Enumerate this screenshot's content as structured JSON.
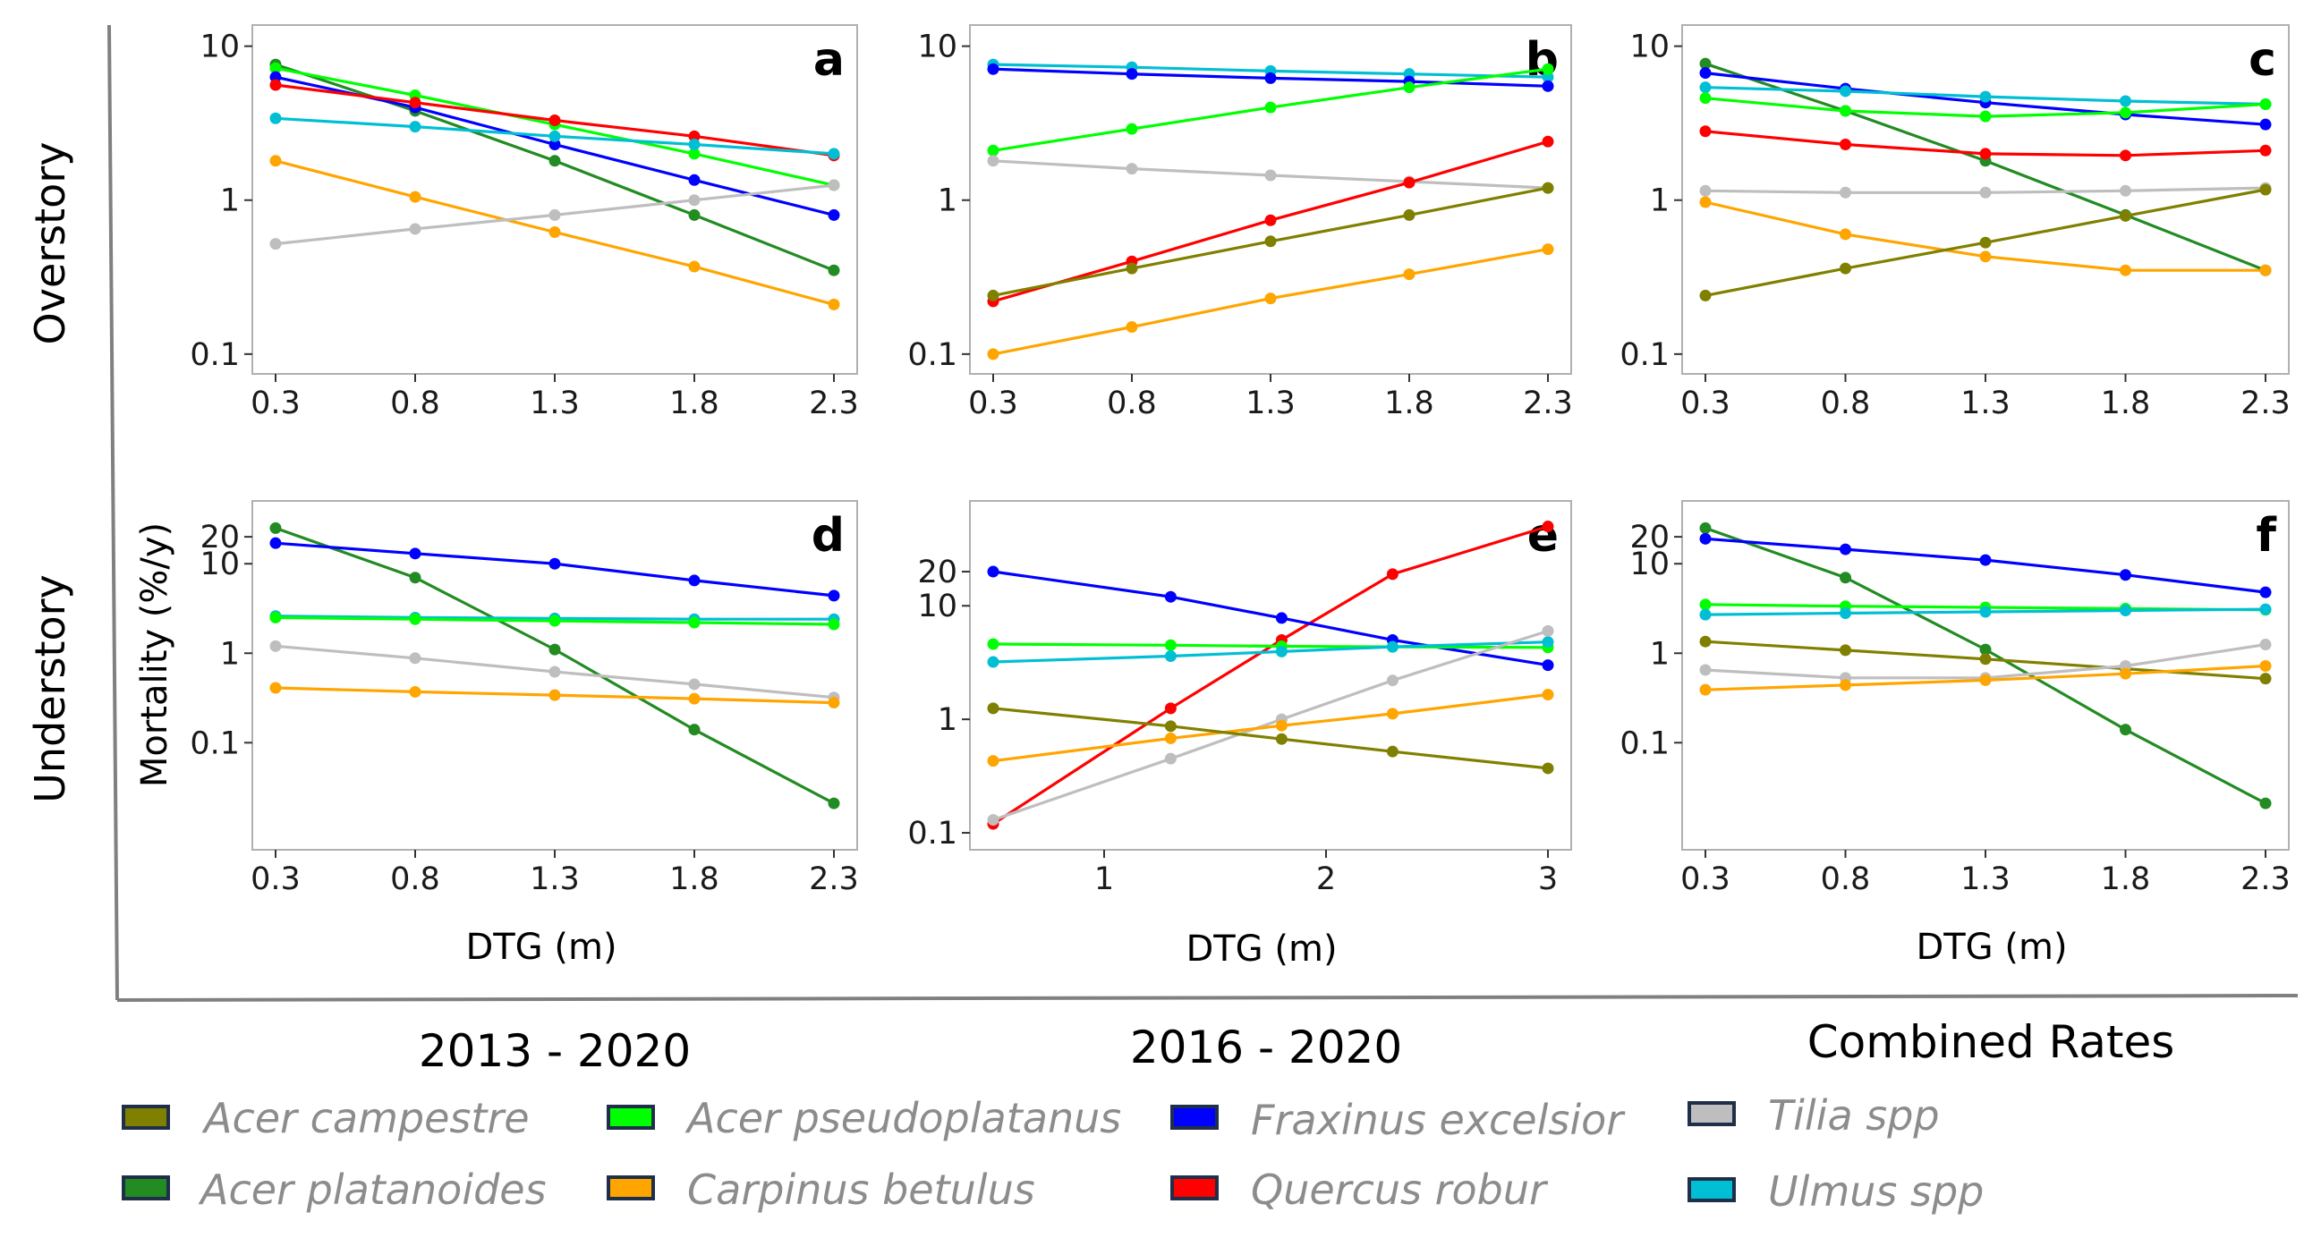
{
  "row_labels": [
    "Overstory",
    "Understory"
  ],
  "column_labels": [
    "2013 - 2020",
    "2016 - 2020",
    "Combined Rates"
  ],
  "y_axis_title": "Mortality (%/y)",
  "x_axis_title": "DTG (m)",
  "colors": {
    "Acer campestre": "#808000",
    "Acer platanoides": "#228B22",
    "Acer pseudoplatanus": "#00FF00",
    "Carpinus betulus": "#FFA500",
    "Fraxinus excelsior": "#0000FF",
    "Quercus robur": "#FF0000",
    "Tilia spp": "#BEBEBE",
    "Ulmus spp": "#00BFD4"
  },
  "legend": [
    "Acer campestre",
    "Acer platanoides",
    "Acer pseudoplatanus",
    "Carpinus betulus",
    "Fraxinus excelsior",
    "Quercus robur",
    "Tilia spp",
    "Ulmus spp"
  ],
  "chart_data": [
    {
      "type": "line",
      "panel": "a",
      "y_scale": "log",
      "x": [
        0.3,
        0.8,
        1.3,
        1.8,
        2.3
      ],
      "xticks": [
        "0.3",
        "0.8",
        "1.3",
        "1.8",
        "2.3"
      ],
      "yticks": [
        "0.1",
        "1",
        "10"
      ],
      "ytick_values": [
        0.1,
        1,
        10
      ],
      "xlim": [
        0.3,
        2.3
      ],
      "ylim": [
        0.085,
        12
      ],
      "series": [
        {
          "name": "Acer platanoides",
          "values": [
            7.6,
            3.8,
            1.8,
            0.8,
            0.35
          ]
        },
        {
          "name": "Acer pseudoplatanus",
          "values": [
            7.2,
            4.8,
            3.1,
            2.0,
            1.25
          ]
        },
        {
          "name": "Fraxinus excelsior",
          "values": [
            6.3,
            4.0,
            2.3,
            1.35,
            0.8
          ]
        },
        {
          "name": "Quercus robur",
          "values": [
            5.6,
            4.3,
            3.3,
            2.6,
            1.95
          ]
        },
        {
          "name": "Ulmus spp",
          "values": [
            3.4,
            3.0,
            2.6,
            2.3,
            2.0
          ]
        },
        {
          "name": "Carpinus betulus",
          "values": [
            1.8,
            1.05,
            0.62,
            0.37,
            0.21
          ]
        },
        {
          "name": "Tilia spp",
          "values": [
            0.52,
            0.65,
            0.8,
            1.0,
            1.25
          ]
        }
      ]
    },
    {
      "type": "line",
      "panel": "b",
      "y_scale": "log",
      "x": [
        0.3,
        0.8,
        1.3,
        1.8,
        2.3
      ],
      "xticks": [
        "0.3",
        "0.8",
        "1.3",
        "1.8",
        "2.3"
      ],
      "yticks": [
        "0.1",
        "1",
        "10"
      ],
      "ytick_values": [
        0.1,
        1,
        10
      ],
      "xlim": [
        0.3,
        2.3
      ],
      "ylim": [
        0.085,
        12
      ],
      "series": [
        {
          "name": "Ulmus spp",
          "values": [
            7.6,
            7.3,
            6.9,
            6.6,
            6.3
          ]
        },
        {
          "name": "Fraxinus excelsior",
          "values": [
            7.1,
            6.6,
            6.2,
            5.9,
            5.5
          ]
        },
        {
          "name": "Acer pseudoplatanus",
          "values": [
            2.1,
            2.9,
            4.0,
            5.4,
            7.1
          ]
        },
        {
          "name": "Tilia spp",
          "values": [
            1.8,
            1.6,
            1.45,
            1.32,
            1.2
          ]
        },
        {
          "name": "Quercus robur",
          "values": [
            0.22,
            0.4,
            0.74,
            1.3,
            2.4
          ]
        },
        {
          "name": "Acer campestre",
          "values": [
            0.24,
            0.36,
            0.54,
            0.8,
            1.2
          ]
        },
        {
          "name": "Carpinus betulus",
          "values": [
            0.1,
            0.15,
            0.23,
            0.33,
            0.48
          ]
        }
      ]
    },
    {
      "type": "line",
      "panel": "c",
      "y_scale": "log",
      "x": [
        0.3,
        0.8,
        1.3,
        1.8,
        2.3
      ],
      "xticks": [
        "0.3",
        "0.8",
        "1.3",
        "1.8",
        "2.3"
      ],
      "yticks": [
        "0.1",
        "1",
        "10"
      ],
      "ytick_values": [
        0.1,
        1,
        10
      ],
      "xlim": [
        0.3,
        2.3
      ],
      "ylim": [
        0.085,
        12
      ],
      "series": [
        {
          "name": "Acer platanoides",
          "values": [
            7.7,
            3.8,
            1.8,
            0.8,
            0.35
          ]
        },
        {
          "name": "Fraxinus excelsior",
          "values": [
            6.7,
            5.3,
            4.3,
            3.6,
            3.1
          ]
        },
        {
          "name": "Ulmus spp",
          "values": [
            5.4,
            5.1,
            4.7,
            4.4,
            4.2
          ]
        },
        {
          "name": "Acer pseudoplatanus",
          "values": [
            4.6,
            3.8,
            3.5,
            3.7,
            4.2
          ]
        },
        {
          "name": "Quercus robur",
          "values": [
            2.8,
            2.3,
            2.0,
            1.95,
            2.1
          ]
        },
        {
          "name": "Tilia spp",
          "values": [
            1.15,
            1.12,
            1.12,
            1.15,
            1.2
          ]
        },
        {
          "name": "Carpinus betulus",
          "values": [
            0.97,
            0.6,
            0.43,
            0.35,
            0.35
          ]
        },
        {
          "name": "Acer campestre",
          "values": [
            0.24,
            0.36,
            0.53,
            0.79,
            1.17
          ]
        }
      ]
    },
    {
      "type": "line",
      "panel": "d",
      "y_scale": "log",
      "x": [
        0.3,
        0.8,
        1.3,
        1.8,
        2.3
      ],
      "xticks": [
        "0.3",
        "0.8",
        "1.3",
        "1.8",
        "2.3"
      ],
      "yticks": [
        "0.1",
        "1",
        "10",
        "20"
      ],
      "ytick_values": [
        0.1,
        1,
        10,
        20
      ],
      "xlim": [
        0.3,
        2.3
      ],
      "ylim": [
        0.008,
        40
      ],
      "series": [
        {
          "name": "Acer platanoides",
          "values": [
            25,
            7,
            1.1,
            0.14,
            0.021
          ]
        },
        {
          "name": "Fraxinus excelsior",
          "values": [
            17,
            13,
            10,
            6.5,
            4.4
          ]
        },
        {
          "name": "Ulmus spp",
          "values": [
            2.6,
            2.5,
            2.45,
            2.4,
            2.4
          ]
        },
        {
          "name": "Acer pseudoplatanus",
          "values": [
            2.5,
            2.4,
            2.3,
            2.2,
            2.1
          ]
        },
        {
          "name": "Tilia spp",
          "values": [
            1.2,
            0.88,
            0.62,
            0.45,
            0.32
          ]
        },
        {
          "name": "Carpinus betulus",
          "values": [
            0.41,
            0.37,
            0.34,
            0.31,
            0.28
          ]
        }
      ]
    },
    {
      "type": "line",
      "panel": "e",
      "y_scale": "log",
      "x": [
        0.5,
        1.3,
        1.8,
        2.3,
        3.0
      ],
      "xticks": [
        "1",
        "2",
        "3"
      ],
      "xtick_values": [
        1,
        2,
        3
      ],
      "yticks": [
        "0.1",
        "1",
        "10",
        "20"
      ],
      "ytick_values": [
        0.1,
        1,
        10,
        20
      ],
      "xlim": [
        0.5,
        3.0
      ],
      "ylim": [
        0.085,
        70
      ],
      "series": [
        {
          "name": "Quercus robur",
          "values": [
            0.12,
            1.25,
            5.0,
            19,
            50
          ]
        },
        {
          "name": "Fraxinus excelsior",
          "values": [
            20,
            12,
            7.8,
            5.0,
            3.0
          ]
        },
        {
          "name": "Acer pseudoplatanus",
          "values": [
            4.6,
            4.5,
            4.4,
            4.35,
            4.3
          ]
        },
        {
          "name": "Ulmus spp",
          "values": [
            3.2,
            3.6,
            3.95,
            4.35,
            4.8
          ]
        },
        {
          "name": "Tilia spp",
          "values": [
            0.13,
            0.45,
            1.0,
            2.2,
            6.0
          ]
        },
        {
          "name": "Carpinus betulus",
          "values": [
            0.43,
            0.68,
            0.88,
            1.12,
            1.65
          ]
        },
        {
          "name": "Acer campestre",
          "values": [
            1.25,
            0.87,
            0.67,
            0.52,
            0.37
          ]
        }
      ]
    },
    {
      "type": "line",
      "panel": "f",
      "y_scale": "log",
      "x": [
        0.3,
        0.8,
        1.3,
        1.8,
        2.3
      ],
      "xticks": [
        "0.3",
        "0.8",
        "1.3",
        "1.8",
        "2.3"
      ],
      "yticks": [
        "0.1",
        "1",
        "10",
        "20"
      ],
      "ytick_values": [
        0.1,
        1,
        10,
        20
      ],
      "xlim": [
        0.3,
        2.3
      ],
      "ylim": [
        0.008,
        40
      ],
      "series": [
        {
          "name": "Acer platanoides",
          "values": [
            25,
            7,
            1.1,
            0.14,
            0.021
          ]
        },
        {
          "name": "Fraxinus excelsior",
          "values": [
            19,
            14.5,
            11,
            7.5,
            4.8
          ]
        },
        {
          "name": "Acer pseudoplatanus",
          "values": [
            3.5,
            3.35,
            3.25,
            3.15,
            3.05
          ]
        },
        {
          "name": "Ulmus spp",
          "values": [
            2.7,
            2.8,
            2.9,
            3.0,
            3.1
          ]
        },
        {
          "name": "Acer campestre",
          "values": [
            1.35,
            1.08,
            0.86,
            0.67,
            0.52
          ]
        },
        {
          "name": "Tilia spp",
          "values": [
            0.65,
            0.53,
            0.53,
            0.72,
            1.25
          ]
        },
        {
          "name": "Carpinus betulus",
          "values": [
            0.39,
            0.44,
            0.5,
            0.59,
            0.72
          ]
        }
      ]
    }
  ]
}
